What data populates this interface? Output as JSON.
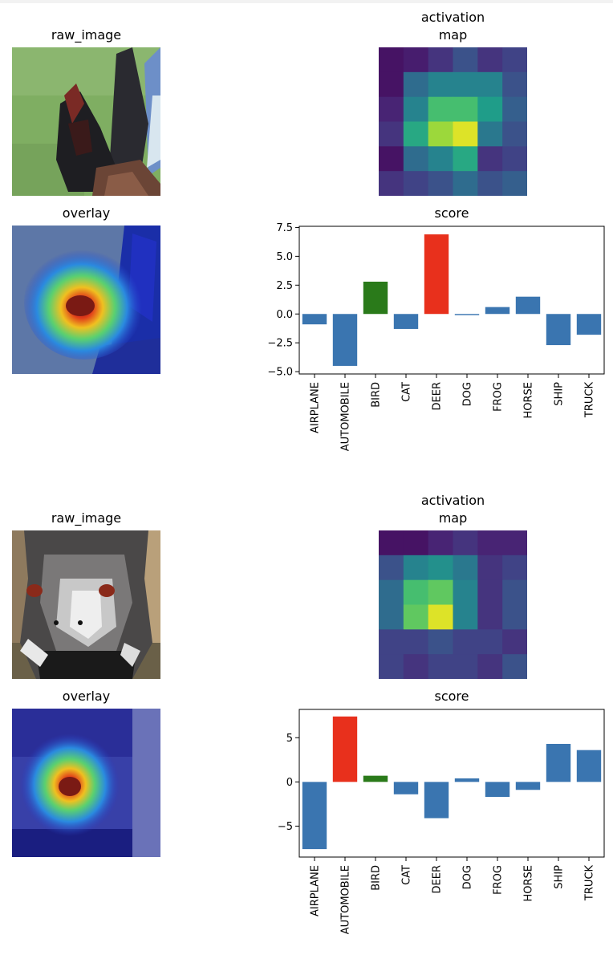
{
  "figures": [
    {
      "raw_title": "raw_image",
      "overlay_title": "overlay",
      "activation_title_line1": "activation",
      "activation_title_line2": "map",
      "score_title": "score",
      "activation_map": [
        [
          0.05,
          0.08,
          0.15,
          0.25,
          0.15,
          0.2
        ],
        [
          0.05,
          0.35,
          0.45,
          0.45,
          0.45,
          0.25
        ],
        [
          0.1,
          0.45,
          0.7,
          0.7,
          0.55,
          0.3
        ],
        [
          0.15,
          0.6,
          0.85,
          0.95,
          0.4,
          0.25
        ],
        [
          0.05,
          0.35,
          0.45,
          0.6,
          0.15,
          0.2
        ],
        [
          0.15,
          0.2,
          0.25,
          0.35,
          0.25,
          0.3
        ]
      ],
      "chart_data": {
        "type": "bar",
        "title": "score",
        "categories": [
          "AIRPLANE",
          "AUTOMOBILE",
          "BIRD",
          "CAT",
          "DEER",
          "DOG",
          "FROG",
          "HORSE",
          "SHIP",
          "TRUCK"
        ],
        "values": [
          -0.9,
          -4.5,
          2.8,
          -1.3,
          6.9,
          -0.1,
          0.6,
          1.5,
          -2.7,
          -1.8
        ],
        "bar_colors": [
          "#3a75b0",
          "#3a75b0",
          "#2a7a1a",
          "#3a75b0",
          "#e8301c",
          "#3a75b0",
          "#3a75b0",
          "#3a75b0",
          "#3a75b0",
          "#3a75b0"
        ],
        "ylim": [
          -5.2,
          7.6
        ],
        "yticks": [
          7.5,
          5.0,
          2.5,
          0.0,
          -2.5,
          -5.0
        ],
        "ytick_labels": [
          "7.5",
          "5.0",
          "2.5",
          "0.0",
          "−2.5",
          "−5.0"
        ],
        "xlabel": "",
        "ylabel": "",
        "grid": false
      }
    },
    {
      "raw_title": "raw_image",
      "overlay_title": "overlay",
      "activation_title_line1": "activation",
      "activation_title_line2": "map",
      "score_title": "score",
      "activation_map": [
        [
          0.05,
          0.05,
          0.1,
          0.15,
          0.1,
          0.1
        ],
        [
          0.25,
          0.45,
          0.5,
          0.4,
          0.15,
          0.2
        ],
        [
          0.35,
          0.7,
          0.75,
          0.45,
          0.15,
          0.25
        ],
        [
          0.35,
          0.75,
          0.95,
          0.45,
          0.15,
          0.25
        ],
        [
          0.2,
          0.2,
          0.25,
          0.2,
          0.2,
          0.15
        ],
        [
          0.2,
          0.15,
          0.2,
          0.2,
          0.15,
          0.25
        ]
      ],
      "chart_data": {
        "type": "bar",
        "title": "score",
        "categories": [
          "AIRPLANE",
          "AUTOMOBILE",
          "BIRD",
          "CAT",
          "DEER",
          "DOG",
          "FROG",
          "HORSE",
          "SHIP",
          "TRUCK"
        ],
        "values": [
          -7.6,
          7.4,
          0.7,
          -1.4,
          -4.1,
          0.4,
          -1.7,
          -0.9,
          4.3,
          3.6
        ],
        "bar_colors": [
          "#3a75b0",
          "#e8301c",
          "#2a7a1a",
          "#3a75b0",
          "#3a75b0",
          "#3a75b0",
          "#3a75b0",
          "#3a75b0",
          "#3a75b0",
          "#3a75b0"
        ],
        "ylim": [
          -8.5,
          8.2
        ],
        "yticks": [
          5,
          0,
          -5
        ],
        "ytick_labels": [
          "5",
          "0",
          "−5"
        ],
        "xlabel": "",
        "ylabel": "",
        "grid": false
      }
    }
  ]
}
